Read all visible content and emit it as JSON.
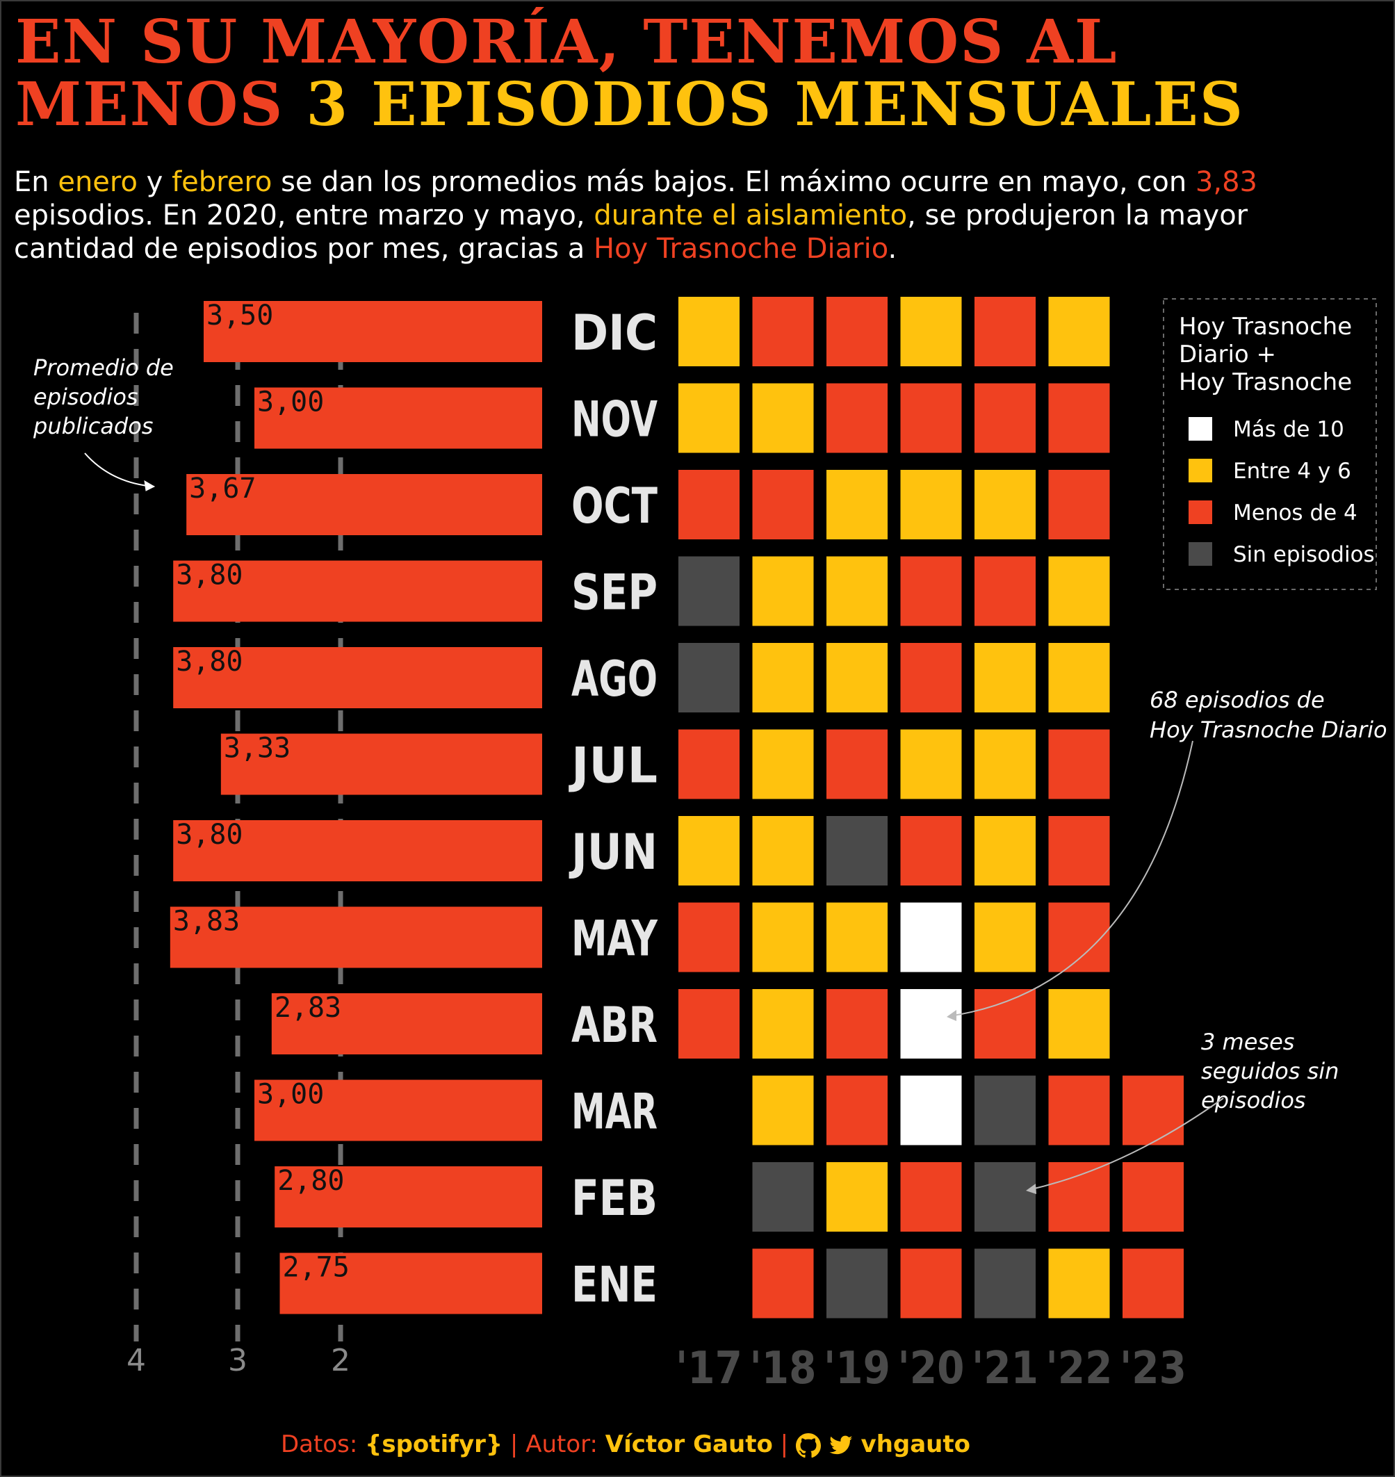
{
  "title": {
    "line1": "EN SU MAYORÍA, TENEMOS AL",
    "line2_part1": "MENOS",
    "line2_part2": "3 EPISODIOS MENSUALES"
  },
  "subtitle": {
    "s1": "En ",
    "s2": "enero",
    "s3": " y ",
    "s4": "febrero",
    "s5": " se dan los promedios más bajos. El máximo ocurre en mayo, con ",
    "s6": "3,83",
    "s7": " episodios. En 2020, entre marzo y mayo, ",
    "s8": "durante el aislamiento",
    "s9": ", se produjeron la mayor cantidad de episodios por mes, gracias a ",
    "s10": "Hoy Trasnoche Diario",
    "s11": "."
  },
  "colors": {
    "red": "#ef4122",
    "yellow": "#ffc20e",
    "white": "#ffffff",
    "gray": "#4a4a4a",
    "background": "#000000"
  },
  "chart_data": [
    {
      "type": "bar",
      "orientation": "horizontal",
      "reversed_axis": true,
      "categories": [
        "DIC",
        "NOV",
        "OCT",
        "SEP",
        "AGO",
        "JUL",
        "JUN",
        "MAY",
        "ABR",
        "MAR",
        "FEB",
        "ENE"
      ],
      "values": [
        3.5,
        3.0,
        3.67,
        3.8,
        3.8,
        3.33,
        3.8,
        3.83,
        2.83,
        3.0,
        2.8,
        2.75
      ],
      "value_labels": [
        "3,50",
        "3,00",
        "3,67",
        "3,80",
        "3,80",
        "3,33",
        "3,80",
        "3,83",
        "2,83",
        "3,00",
        "2,80",
        "2,75"
      ],
      "x_ticks": [
        "4",
        "3",
        "2"
      ],
      "x_tick_values": [
        4,
        3,
        2
      ],
      "xlim": [
        0,
        4
      ],
      "grid": "dashed vertical lines at ticks",
      "annotation": "Promedio de episodios publicados"
    },
    {
      "type": "heatmap",
      "rows": [
        "DIC",
        "NOV",
        "OCT",
        "SEP",
        "AGO",
        "JUL",
        "JUN",
        "MAY",
        "ABR",
        "MAR",
        "FEB",
        "ENE"
      ],
      "columns": [
        "'17",
        "'18",
        "'19",
        "'20",
        "'21",
        "'22",
        "'23"
      ],
      "cells": [
        [
          "yellow",
          "red",
          "red",
          "yellow",
          "red",
          "yellow",
          ""
        ],
        [
          "yellow",
          "yellow",
          "red",
          "red",
          "red",
          "red",
          ""
        ],
        [
          "red",
          "red",
          "yellow",
          "yellow",
          "yellow",
          "red",
          ""
        ],
        [
          "gray",
          "yellow",
          "yellow",
          "red",
          "red",
          "yellow",
          ""
        ],
        [
          "gray",
          "yellow",
          "yellow",
          "red",
          "yellow",
          "yellow",
          ""
        ],
        [
          "red",
          "yellow",
          "red",
          "yellow",
          "yellow",
          "red",
          ""
        ],
        [
          "yellow",
          "yellow",
          "gray",
          "red",
          "yellow",
          "red",
          ""
        ],
        [
          "red",
          "yellow",
          "yellow",
          "white",
          "yellow",
          "red",
          ""
        ],
        [
          "red",
          "yellow",
          "red",
          "white",
          "red",
          "yellow",
          ""
        ],
        [
          "",
          "yellow",
          "red",
          "white",
          "gray",
          "red",
          "red"
        ],
        [
          "",
          "gray",
          "yellow",
          "red",
          "gray",
          "red",
          "red"
        ],
        [
          "",
          "red",
          "gray",
          "red",
          "gray",
          "yellow",
          "red"
        ]
      ],
      "legend": {
        "title": [
          "Hoy Trasnoche",
          "Diario +",
          "Hoy Trasnoche"
        ],
        "items": [
          {
            "label": "Más de 10",
            "color": "white"
          },
          {
            "label": "Entre 4 y 6",
            "color": "yellow"
          },
          {
            "label": "Menos de 4",
            "color": "red"
          },
          {
            "label": "Sin episodios",
            "color": "gray"
          }
        ],
        "placement": "top-right"
      },
      "annotations": [
        {
          "lines": [
            "68 episodios de",
            "Hoy Trasnoche Diario"
          ]
        },
        {
          "lines": [
            "3 meses",
            "seguidos sin",
            "episodios"
          ]
        }
      ]
    }
  ],
  "caption": {
    "datos_label": "Datos:",
    "datos_value": "{spotifyr}",
    "sep1": "|",
    "autor_label": "Autor:",
    "autor_value": "Víctor Gauto",
    "sep2": "|",
    "handle": "vhgauto",
    "icons": [
      "github-icon",
      "twitter-icon"
    ]
  }
}
